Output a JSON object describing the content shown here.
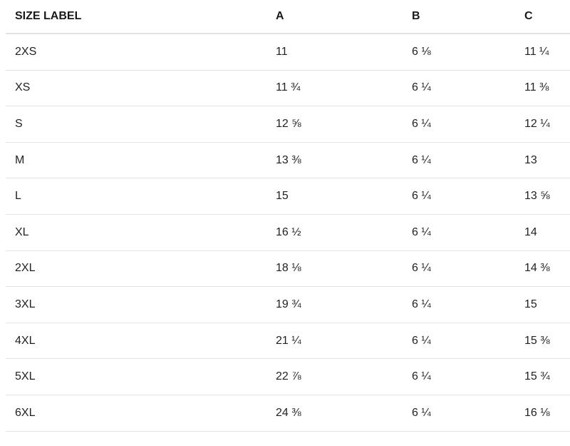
{
  "table": {
    "headers": [
      "SIZE LABEL",
      "A",
      "B",
      "C"
    ],
    "rows": [
      [
        "2XS",
        "11",
        "6 ⅛",
        "11 ¼"
      ],
      [
        "XS",
        "11 ¾",
        "6 ¼",
        "11 ⅜"
      ],
      [
        "S",
        "12 ⅝",
        "6 ¼",
        "12 ¼"
      ],
      [
        "M",
        "13 ⅜",
        "6 ¼",
        "13"
      ],
      [
        "L",
        "15",
        "6 ¼",
        "13 ⅝"
      ],
      [
        "XL",
        "16 ½",
        "6 ¼",
        "14"
      ],
      [
        "2XL",
        "18 ⅛",
        "6 ¼",
        "14 ⅜"
      ],
      [
        "3XL",
        "19 ¾",
        "6 ¼",
        "15"
      ],
      [
        "4XL",
        "21 ¼",
        "6 ¼",
        "15 ⅜"
      ],
      [
        "5XL",
        "22 ⅞",
        "6 ¼",
        "15 ¾"
      ],
      [
        "6XL",
        "24 ⅜",
        "6 ¼",
        "16 ⅛"
      ]
    ]
  }
}
